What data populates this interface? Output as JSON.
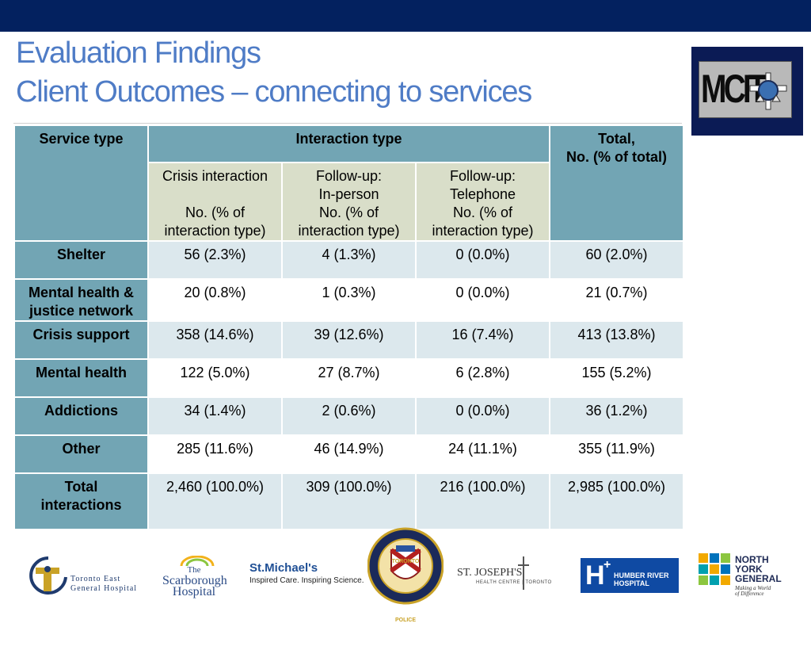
{
  "title_line1": "Evaluation Findings",
  "title_line2": "Client Outcomes – connecting to services",
  "colors": {
    "top_bar": "#03215f",
    "title": "#4f7cc6",
    "header": "#72a5b4",
    "subheader": "#d9dec9",
    "row_alt": "#dce8ed"
  },
  "logo_text": {
    "mcit": "MCIT"
  },
  "table": {
    "service_type_header": "Service type",
    "interaction_type_header": "Interaction type",
    "total_header": [
      "Total,",
      "No. (% of total)"
    ],
    "subheaders": [
      [
        "Crisis interaction",
        "",
        "No. (% of",
        "interaction type)"
      ],
      [
        "Follow-up:",
        "In-person",
        "No. (% of",
        "interaction type)"
      ],
      [
        "Follow-up:",
        "Telephone",
        "No. (% of",
        "interaction type)"
      ]
    ],
    "rows": [
      {
        "service": [
          "Shelter"
        ],
        "crisis": "56 (2.3%)",
        "in_person": "4 (1.3%)",
        "telephone": "0 (0.0%)",
        "total": "60 (2.0%)"
      },
      {
        "service": [
          "Mental health &",
          "justice network"
        ],
        "crisis": "20 (0.8%)",
        "in_person": "1 (0.3%)",
        "telephone": "0 (0.0%)",
        "total": "21 (0.7%)"
      },
      {
        "service": [
          "Crisis  support"
        ],
        "crisis": "358 (14.6%)",
        "in_person": "39 (12.6%)",
        "telephone": "16 (7.4%)",
        "total": "413 (13.8%)"
      },
      {
        "service": [
          "Mental health"
        ],
        "crisis": "122 (5.0%)",
        "in_person": "27 (8.7%)",
        "telephone": "6 (2.8%)",
        "total": "155 (5.2%)"
      },
      {
        "service": [
          "Addictions"
        ],
        "crisis": "34 (1.4%)",
        "in_person": "2 (0.6%)",
        "telephone": "0 (0.0%)",
        "total": "36 (1.2%)"
      },
      {
        "service": [
          "Other"
        ],
        "crisis": "285 (11.6%)",
        "in_person": "46 (14.9%)",
        "telephone": "24 (11.1%)",
        "total": "355 (11.9%)"
      },
      {
        "service": [
          "Total",
          "interactions"
        ],
        "crisis": "2,460 (100.0%)",
        "in_person": "309 (100.0%)",
        "telephone": "216 (100.0%)",
        "total": "2,985 (100.0%)"
      }
    ]
  },
  "partners": {
    "tegh": [
      "Toronto East",
      "General Hospital"
    ],
    "scarborough": [
      "The",
      "Scarborough",
      "Hospital"
    ],
    "st_michaels_name": "St.Michael's",
    "st_michaels_tag": "Inspired Care. Inspiring Science.",
    "toronto_police": [
      "TORONTO",
      "POLICE"
    ],
    "st_josephs_name": "ST. JOSEPH'S",
    "st_josephs_sub": "HEALTH CENTRE  |  TORONTO",
    "humber": [
      "HUMBER RIVER",
      "HOSPITAL"
    ],
    "nygh": [
      "NORTH",
      "YORK",
      "GENERAL"
    ],
    "nygh_tag": [
      "Making a World",
      "of Difference"
    ]
  }
}
